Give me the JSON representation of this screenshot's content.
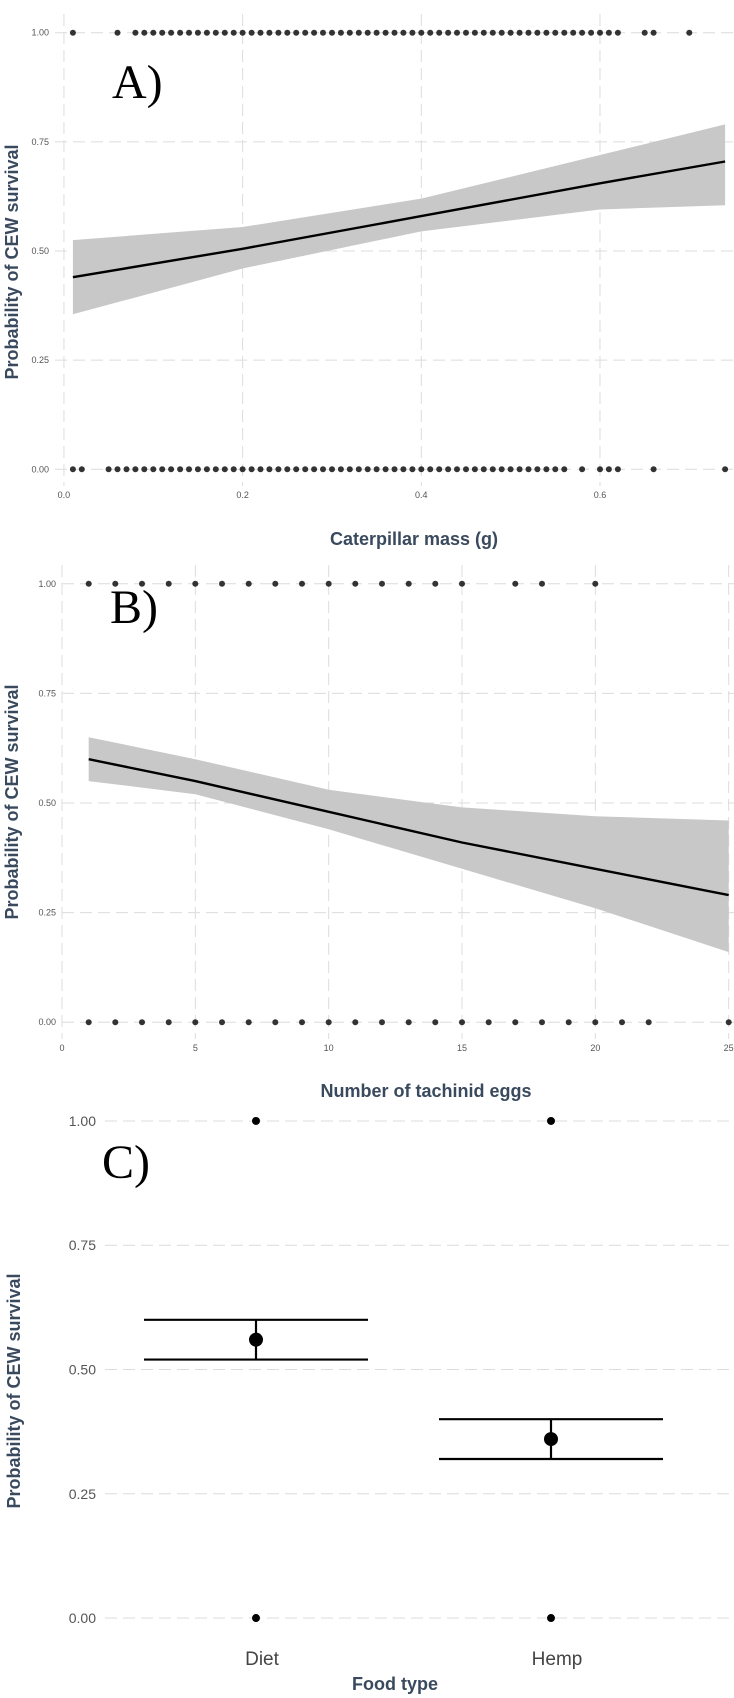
{
  "chart_data": [
    {
      "type": "line",
      "panel_label": "A)",
      "xlabel": "Caterpillar mass (g)",
      "ylabel": "Probability of CEW survival",
      "xlim": [
        -0.01,
        0.75
      ],
      "ylim": [
        -0.02,
        1.02
      ],
      "x_ticks": [
        0.0,
        0.2,
        0.4,
        0.6
      ],
      "x_tick_labels": [
        "0.0",
        "0.2",
        "0.4",
        "0.6"
      ],
      "y_ticks": [
        0.0,
        0.25,
        0.5,
        0.75,
        1.0
      ],
      "y_tick_labels": [
        "0.00",
        "0.25",
        "0.50",
        "0.75",
        "1.00"
      ],
      "grid": true,
      "fit_line": {
        "x": [
          0.01,
          0.2,
          0.4,
          0.6,
          0.74
        ],
        "y": [
          0.44,
          0.505,
          0.58,
          0.655,
          0.705
        ]
      },
      "ci_band": {
        "x": [
          0.01,
          0.2,
          0.4,
          0.6,
          0.74
        ],
        "lower": [
          0.355,
          0.46,
          0.545,
          0.595,
          0.605
        ],
        "upper": [
          0.525,
          0.555,
          0.62,
          0.72,
          0.79
        ]
      },
      "points_y1": [
        0.01,
        0.06,
        0.08,
        0.09,
        0.1,
        0.11,
        0.12,
        0.13,
        0.14,
        0.15,
        0.16,
        0.17,
        0.18,
        0.19,
        0.2,
        0.21,
        0.22,
        0.23,
        0.24,
        0.25,
        0.26,
        0.27,
        0.28,
        0.29,
        0.3,
        0.31,
        0.32,
        0.33,
        0.34,
        0.35,
        0.36,
        0.37,
        0.38,
        0.39,
        0.4,
        0.41,
        0.42,
        0.43,
        0.44,
        0.45,
        0.46,
        0.47,
        0.48,
        0.49,
        0.5,
        0.51,
        0.52,
        0.53,
        0.54,
        0.55,
        0.56,
        0.57,
        0.58,
        0.59,
        0.6,
        0.61,
        0.62,
        0.65,
        0.66,
        0.7
      ],
      "points_y0": [
        0.01,
        0.02,
        0.05,
        0.06,
        0.07,
        0.08,
        0.09,
        0.1,
        0.11,
        0.12,
        0.13,
        0.14,
        0.15,
        0.16,
        0.17,
        0.18,
        0.19,
        0.2,
        0.21,
        0.22,
        0.23,
        0.24,
        0.25,
        0.26,
        0.27,
        0.28,
        0.29,
        0.3,
        0.31,
        0.32,
        0.33,
        0.34,
        0.35,
        0.36,
        0.37,
        0.38,
        0.39,
        0.4,
        0.41,
        0.42,
        0.43,
        0.44,
        0.45,
        0.46,
        0.47,
        0.48,
        0.49,
        0.5,
        0.51,
        0.52,
        0.53,
        0.54,
        0.55,
        0.56,
        0.58,
        0.6,
        0.61,
        0.62,
        0.66,
        0.74
      ]
    },
    {
      "type": "line",
      "panel_label": "B)",
      "xlabel": "Number of tachinid eggs",
      "ylabel": "Probability of CEW survival",
      "xlim": [
        0,
        25.2
      ],
      "ylim": [
        -0.02,
        1.02
      ],
      "x_ticks": [
        0,
        5,
        10,
        15,
        20,
        25
      ],
      "x_tick_labels": [
        "0",
        "5",
        "10",
        "15",
        "20",
        "25"
      ],
      "y_ticks": [
        0.0,
        0.25,
        0.5,
        0.75,
        1.0
      ],
      "y_tick_labels": [
        "0.00",
        "0.25",
        "0.50",
        "0.75",
        "1.00"
      ],
      "grid": true,
      "fit_line": {
        "x": [
          1,
          5,
          10,
          15,
          20,
          25
        ],
        "y": [
          0.6,
          0.55,
          0.48,
          0.41,
          0.35,
          0.29
        ]
      },
      "ci_band": {
        "x": [
          1,
          5,
          10,
          15,
          20,
          25
        ],
        "lower": [
          0.55,
          0.52,
          0.44,
          0.35,
          0.26,
          0.16
        ],
        "upper": [
          0.65,
          0.6,
          0.53,
          0.49,
          0.47,
          0.46
        ]
      },
      "points_y1": [
        1,
        2,
        3,
        4,
        5,
        6,
        7,
        8,
        9,
        10,
        11,
        12,
        13,
        14,
        15,
        17,
        18,
        20
      ],
      "points_y0": [
        1,
        2,
        3,
        4,
        5,
        6,
        7,
        8,
        9,
        10,
        11,
        12,
        13,
        14,
        15,
        16,
        17,
        18,
        19,
        20,
        21,
        22,
        25
      ]
    },
    {
      "type": "scatter",
      "panel_label": "C)",
      "xlabel": "Food type",
      "ylabel": "Probability of CEW survival",
      "categories": [
        "Diet",
        "Hemp"
      ],
      "estimates": [
        0.56,
        0.36
      ],
      "ci_lower": [
        0.52,
        0.32
      ],
      "ci_upper": [
        0.6,
        0.4
      ],
      "ylim": [
        -0.02,
        1.02
      ],
      "y_ticks": [
        0.0,
        0.25,
        0.5,
        0.75,
        1.0
      ],
      "y_tick_labels": [
        "0.00",
        "0.25",
        "0.50",
        "0.75",
        "1.00"
      ],
      "raw_points_y": [
        1.0,
        0.0
      ],
      "grid": true
    }
  ]
}
